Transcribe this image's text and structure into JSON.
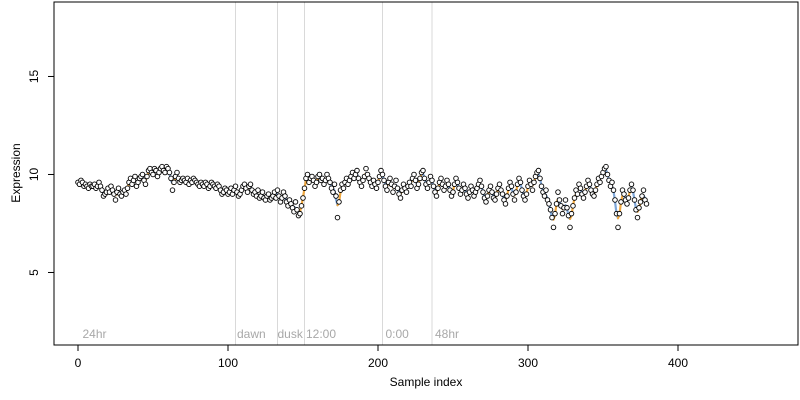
{
  "chart_data": {
    "type": "scatter",
    "xlabel": "Sample index",
    "ylabel": "Expression",
    "xlim": [
      -16,
      480
    ],
    "ylim": [
      1.3,
      18.8
    ],
    "x_ticks": [
      0,
      100,
      200,
      300,
      400
    ],
    "y_ticks": [
      5,
      10,
      15
    ],
    "grid": false,
    "colors": {
      "up": "#f0a840",
      "down": "#7ea6d8",
      "point_stroke": "#000000",
      "point_fill": "#ffffff",
      "divider": "#d9d9d9",
      "phase_text": "#a8a8a8"
    },
    "annotations": [
      {
        "x": 3,
        "label": "24hr"
      },
      {
        "x": 106,
        "label": "dawn"
      },
      {
        "x": 133,
        "label": "dusk"
      },
      {
        "x": 152,
        "label": "12:00"
      },
      {
        "x": 205,
        "label": "0:00"
      },
      {
        "x": 238,
        "label": "48hr"
      }
    ],
    "dividers": [
      105,
      133,
      151,
      203,
      236
    ],
    "values": [
      9.6,
      9.5,
      9.7,
      9.6,
      9.4,
      9.5,
      9.4,
      9.3,
      9.5,
      9.4,
      9.4,
      9.5,
      9.3,
      9.4,
      9.6,
      9.4,
      9.2,
      8.9,
      9.0,
      9.1,
      9.3,
      9.1,
      9.4,
      9.2,
      9.0,
      8.7,
      9.1,
      9.3,
      9.0,
      8.9,
      9.1,
      9.2,
      9.0,
      9.3,
      9.6,
      9.8,
      9.5,
      9.7,
      9.9,
      9.4,
      9.6,
      9.8,
      9.9,
      10.0,
      9.7,
      9.5,
      9.9,
      10.2,
      10.3,
      10.1,
      10.0,
      10.3,
      10.2,
      9.9,
      10.1,
      10.3,
      10.4,
      10.2,
      10.1,
      10.4,
      10.3,
      10.1,
      9.8,
      9.2,
      9.6,
      9.9,
      10.1,
      9.8,
      9.6,
      9.7,
      9.8,
      9.7,
      9.6,
      9.8,
      9.5,
      9.7,
      9.6,
      9.8,
      9.7,
      9.6,
      9.5,
      9.4,
      9.6,
      9.5,
      9.4,
      9.6,
      9.5,
      9.3,
      9.4,
      9.6,
      9.5,
      9.4,
      9.3,
      9.5,
      9.4,
      9.2,
      9.0,
      9.1,
      9.3,
      9.2,
      9.0,
      9.1,
      9.3,
      9.0,
      9.2,
      9.4,
      9.1,
      8.9,
      9.0,
      9.2,
      9.4,
      9.5,
      9.3,
      9.1,
      9.4,
      9.5,
      9.2,
      9.0,
      9.1,
      8.9,
      9.2,
      8.8,
      8.9,
      9.1,
      8.8,
      8.7,
      8.9,
      9.0,
      8.7,
      8.8,
      8.9,
      9.1,
      8.8,
      9.2,
      8.9,
      8.6,
      8.8,
      9.1,
      8.9,
      8.6,
      8.4,
      8.7,
      8.5,
      8.3,
      8.1,
      8.6,
      8.2,
      7.9,
      8.0,
      8.4,
      8.8,
      9.3,
      9.8,
      10.0,
      9.6,
      9.8,
      9.9,
      9.7,
      9.4,
      9.6,
      9.9,
      10.0,
      9.7,
      9.8,
      9.5,
      9.7,
      10.0,
      9.8,
      9.6,
      9.3,
      9.1,
      9.5,
      8.9,
      7.8,
      8.6,
      9.2,
      9.5,
      9.3,
      9.6,
      9.8,
      9.5,
      9.7,
      9.9,
      10.1,
      9.8,
      10.0,
      10.2,
      9.8,
      9.6,
      9.4,
      9.7,
      9.9,
      10.3,
      10.0,
      9.8,
      9.6,
      9.4,
      9.7,
      9.5,
      9.3,
      9.6,
      9.9,
      10.2,
      10.0,
      9.7,
      9.4,
      9.2,
      9.6,
      9.8,
      9.5,
      9.1,
      9.4,
      9.7,
      9.3,
      9.0,
      8.8,
      9.2,
      9.5,
      9.3,
      9.1,
      9.4,
      9.6,
      9.4,
      9.8,
      10.0,
      9.7,
      9.3,
      9.5,
      9.8,
      10.1,
      10.2,
      9.8,
      9.5,
      9.3,
      9.6,
      9.9,
      9.7,
      9.4,
      9.1,
      8.9,
      9.3,
      9.6,
      9.8,
      9.5,
      9.2,
      9.4,
      9.7,
      9.5,
      9.2,
      8.9,
      9.1,
      9.5,
      9.8,
      9.6,
      9.3,
      9.0,
      9.2,
      9.5,
      9.3,
      9.0,
      8.8,
      9.1,
      9.4,
      9.2,
      8.9,
      9.1,
      9.3,
      9.5,
      9.7,
      9.4,
      9.1,
      8.8,
      8.6,
      8.9,
      9.2,
      9.4,
      9.1,
      8.8,
      8.7,
      9.0,
      9.3,
      9.5,
      9.2,
      9.0,
      8.7,
      8.5,
      8.9,
      9.3,
      9.6,
      9.4,
      9.0,
      8.7,
      9.1,
      9.5,
      9.8,
      9.6,
      9.2,
      8.9,
      8.7,
      9.0,
      9.4,
      9.7,
      9.5,
      9.2,
      9.6,
      9.9,
      10.1,
      10.2,
      9.8,
      9.4,
      9.1,
      8.9,
      9.2,
      8.7,
      8.5,
      8.2,
      7.8,
      7.3,
      8.0,
      8.5,
      9.1,
      8.7,
      8.4,
      8.0,
      8.3,
      8.7,
      8.3,
      7.9,
      7.3,
      8.0,
      8.4,
      8.8,
      9.2,
      9.0,
      9.5,
      9.3,
      9.0,
      8.8,
      9.1,
      9.4,
      9.7,
      9.5,
      9.2,
      9.0,
      8.9,
      9.2,
      9.5,
      9.8,
      9.6,
      9.9,
      10.1,
      10.3,
      10.4,
      10.0,
      9.7,
      9.4,
      9.6,
      9.2,
      8.7,
      8.0,
      7.3,
      8.0,
      8.6,
      9.2,
      9.0,
      8.7,
      8.5,
      8.8,
      9.2,
      9.5,
      9.2,
      8.7,
      8.2,
      7.8,
      8.3,
      8.6,
      8.9,
      9.2,
      8.7,
      8.5
    ]
  }
}
